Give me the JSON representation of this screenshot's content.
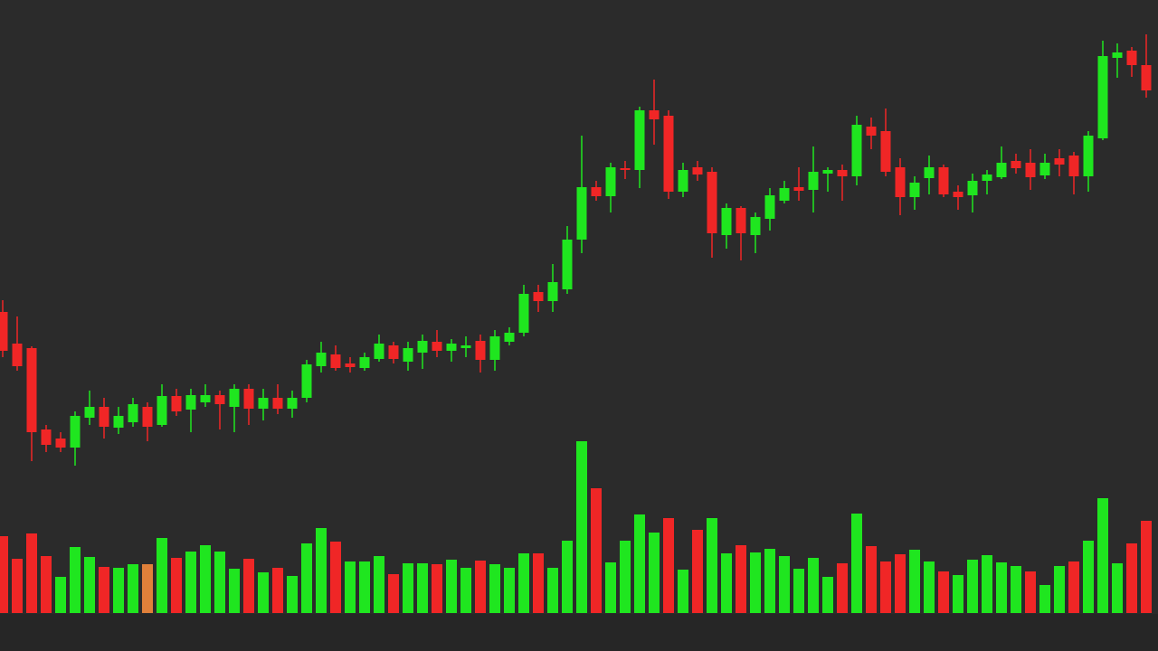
{
  "chart_data": {
    "type": "candlestick",
    "up_color": "#1fe61f",
    "down_color": "#f02626",
    "ylim": [
      0,
      720
    ],
    "volume_ylim": [
      0,
      678
    ],
    "open": [
      375,
      340,
      335,
      245,
      235,
      225,
      258,
      270,
      247,
      253,
      270,
      250,
      282,
      267,
      275,
      283,
      270,
      290,
      268,
      280,
      268,
      280,
      315,
      328,
      318,
      313,
      323,
      338,
      320,
      330,
      342,
      332,
      335,
      343,
      322,
      342,
      352,
      397,
      387,
      400,
      455,
      513,
      503,
      534,
      532,
      598,
      592,
      508,
      535,
      530,
      460,
      490,
      460,
      478,
      498,
      513,
      510,
      528,
      532,
      525,
      580,
      575,
      535,
      502,
      523,
      535,
      508,
      504,
      520,
      524,
      542,
      540,
      526,
      545,
      548,
      525,
      567,
      656,
      664,
      648
    ],
    "high": [
      388,
      370,
      337,
      250,
      242,
      265,
      288,
      280,
      270,
      280,
      275,
      295,
      290,
      290,
      295,
      288,
      295,
      295,
      290,
      295,
      288,
      322,
      342,
      338,
      325,
      330,
      350,
      342,
      342,
      350,
      355,
      345,
      348,
      350,
      355,
      358,
      405,
      405,
      428,
      470,
      570,
      520,
      540,
      542,
      602,
      632,
      598,
      540,
      542,
      535,
      495,
      492,
      485,
      512,
      520,
      535,
      558,
      535,
      538,
      592,
      590,
      600,
      545,
      525,
      548,
      538,
      515,
      528,
      532,
      558,
      550,
      555,
      550,
      555,
      552,
      575,
      675,
      672,
      668,
      682
    ],
    "low": [
      325,
      310,
      210,
      220,
      220,
      205,
      250,
      235,
      240,
      248,
      232,
      248,
      260,
      242,
      270,
      245,
      242,
      250,
      255,
      262,
      258,
      275,
      308,
      310,
      308,
      310,
      320,
      318,
      310,
      312,
      325,
      320,
      325,
      308,
      310,
      338,
      348,
      375,
      375,
      395,
      440,
      498,
      485,
      522,
      512,
      560,
      500,
      502,
      520,
      435,
      445,
      432,
      440,
      465,
      495,
      498,
      485,
      508,
      498,
      515,
      555,
      525,
      482,
      488,
      505,
      502,
      488,
      485,
      505,
      522,
      528,
      510,
      522,
      525,
      505,
      508,
      565,
      634,
      635,
      612
    ],
    "close": [
      332,
      315,
      242,
      228,
      225,
      260,
      270,
      248,
      260,
      273,
      248,
      282,
      265,
      283,
      283,
      273,
      290,
      268,
      280,
      268,
      280,
      317,
      330,
      313,
      314,
      325,
      340,
      323,
      335,
      343,
      332,
      340,
      338,
      322,
      348,
      352,
      395,
      387,
      408,
      455,
      513,
      503,
      535,
      532,
      598,
      588,
      508,
      532,
      527,
      462,
      490,
      462,
      480,
      504,
      512,
      509,
      530,
      532,
      525,
      582,
      570,
      530,
      502,
      518,
      535,
      505,
      502,
      520,
      527,
      540,
      534,
      524,
      540,
      538,
      525,
      570,
      658,
      662,
      648,
      620
    ],
    "volume": [
      85,
      60,
      88,
      63,
      40,
      73,
      62,
      51,
      50,
      54,
      54,
      83,
      61,
      68,
      75,
      68,
      49,
      60,
      45,
      50,
      41,
      77,
      94,
      79,
      57,
      57,
      63,
      43,
      55,
      55,
      54,
      59,
      50,
      58,
      54,
      50,
      66,
      66,
      50,
      80,
      190,
      138,
      56,
      80,
      109,
      89,
      105,
      48,
      92,
      105,
      66,
      75,
      67,
      71,
      63,
      49,
      61,
      40,
      55,
      110,
      74,
      57,
      65,
      70,
      57,
      46,
      42,
      59,
      64,
      56,
      52,
      46,
      31,
      52,
      57,
      80,
      127,
      55,
      77,
      102
    ],
    "volume_colors": [
      "#f02626",
      "#f02626",
      "#f02626",
      "#f02626",
      "#1fe61f",
      "#1fe61f",
      "#1fe61f",
      "#f02626",
      "#1fe61f",
      "#1fe61f",
      "#e0803a",
      "#1fe61f",
      "#f02626",
      "#1fe61f",
      "#1fe61f",
      "#1fe61f",
      "#1fe61f",
      "#f02626",
      "#1fe61f",
      "#f02626",
      "#1fe61f",
      "#1fe61f",
      "#1fe61f",
      "#f02626",
      "#1fe61f",
      "#1fe61f",
      "#1fe61f",
      "#f02626",
      "#1fe61f",
      "#1fe61f",
      "#f02626",
      "#1fe61f",
      "#1fe61f",
      "#f02626",
      "#1fe61f",
      "#1fe61f",
      "#1fe61f",
      "#f02626",
      "#1fe61f",
      "#1fe61f",
      "#1fe61f",
      "#f02626",
      "#1fe61f",
      "#1fe61f",
      "#1fe61f",
      "#1fe61f",
      "#f02626",
      "#1fe61f",
      "#f02626",
      "#1fe61f",
      "#1fe61f",
      "#f02626",
      "#1fe61f",
      "#1fe61f",
      "#1fe61f",
      "#1fe61f",
      "#1fe61f",
      "#1fe61f",
      "#f02626",
      "#1fe61f",
      "#f02626",
      "#f02626",
      "#f02626",
      "#1fe61f",
      "#1fe61f",
      "#f02626",
      "#1fe61f",
      "#1fe61f",
      "#1fe61f",
      "#1fe61f",
      "#1fe61f",
      "#f02626",
      "#1fe61f",
      "#1fe61f",
      "#f02626",
      "#1fe61f",
      "#1fe61f",
      "#1fe61f",
      "#f02626",
      "#f02626"
    ]
  }
}
